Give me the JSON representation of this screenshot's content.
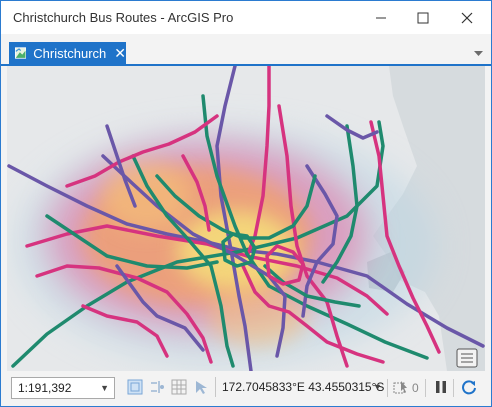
{
  "window": {
    "title": "Christchurch Bus Routes - ArcGIS Pro"
  },
  "tabs": [
    {
      "label": "Christchurch",
      "close_glyph": "✕"
    }
  ],
  "statusbar": {
    "scale": "1:191,392",
    "coordinates": "172.7045833°E 43.4550315°S",
    "selected_count": "0"
  },
  "icons": {
    "minimize": "minimize-icon",
    "maximize": "maximize-icon",
    "close": "close-icon",
    "map_tab": "map-tab-icon",
    "tab_menu": "chevron-down-icon",
    "legend": "legend-icon",
    "fixed_zoom": "fixed-zoom-icon",
    "snapping": "snapping-icon",
    "grid": "grid-icon",
    "navigate": "navigate-icon",
    "selection": "selection-icon",
    "pause": "pause-icon",
    "refresh": "refresh-icon"
  },
  "colors": {
    "accent": "#1f73c9",
    "route_pink": "#d6337f",
    "route_green": "#1f8a6e",
    "route_purple": "#6a57a8",
    "heat_core": "#f5e07a",
    "heat_mid": "#f2a066",
    "heat_outer": "#e36aa0",
    "heat_halo": "#b8d4e3",
    "coast_land": "#c9cfd3"
  }
}
